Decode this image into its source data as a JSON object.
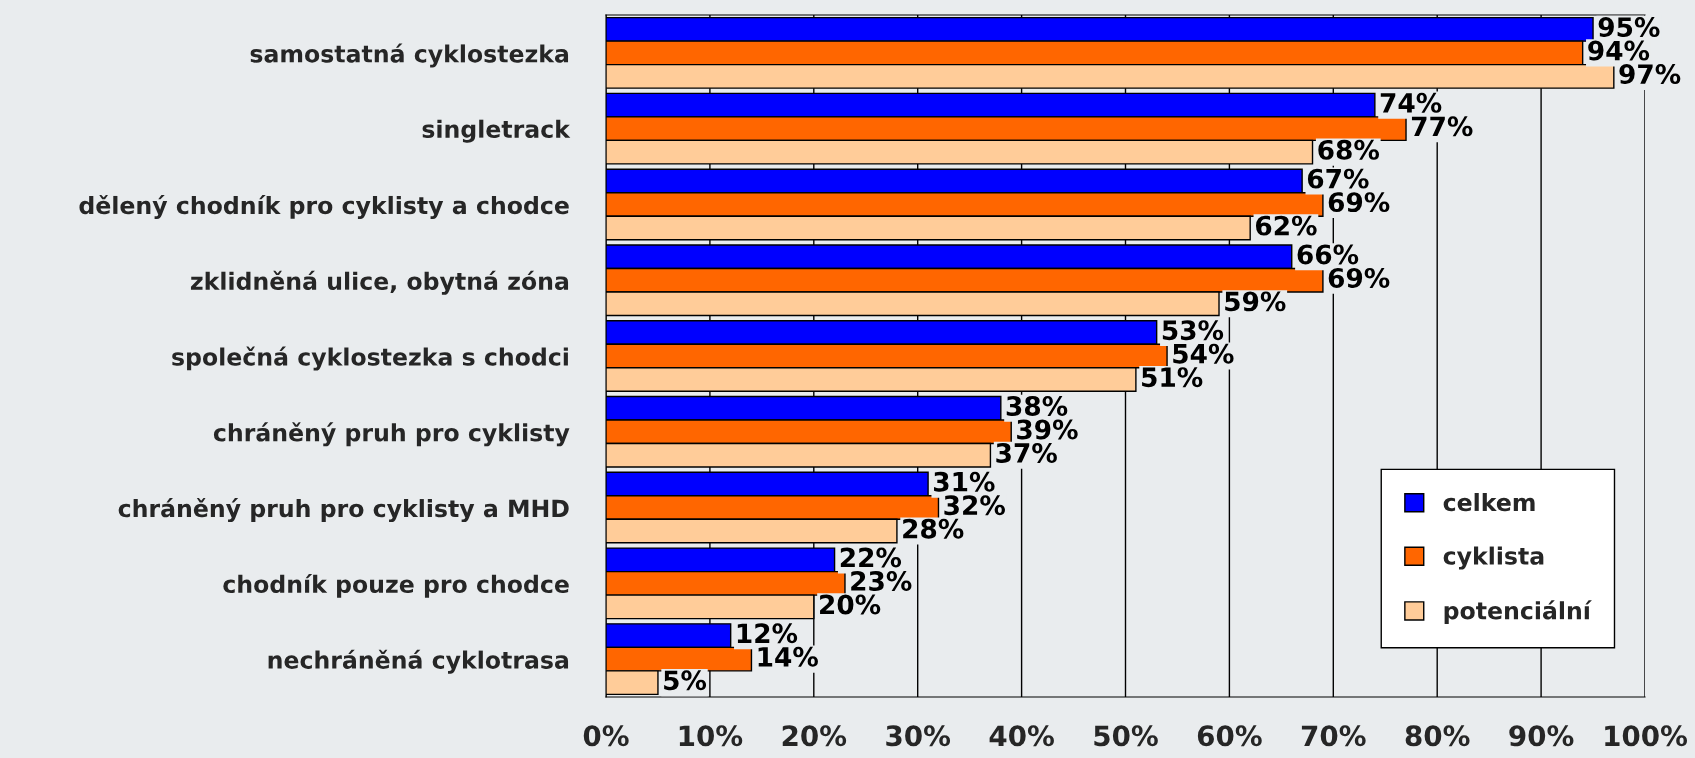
{
  "chart_data": {
    "type": "bar",
    "orientation": "horizontal",
    "categories": [
      "samostatná cyklostezka",
      "singletrack",
      "dělený chodník pro cyklisty a chodce",
      "zklidněná ulice, obytná zóna",
      "společná cyklostezka s chodci",
      "chráněný pruh pro cyklisty",
      "chráněný pruh pro cyklisty a MHD",
      "chodník pouze pro chodce",
      "nechráněná cyklotrasa"
    ],
    "series": [
      {
        "name": "celkem",
        "color": "#0000ff",
        "values": [
          95,
          74,
          67,
          66,
          53,
          38,
          31,
          22,
          12
        ],
        "value_labels": [
          "95%",
          "74%",
          "67%",
          "66%",
          "53%",
          "38%",
          "31%",
          "22%",
          "12%"
        ]
      },
      {
        "name": "cyklista",
        "color": "#ff6600",
        "values": [
          94,
          77,
          69,
          69,
          54,
          39,
          32,
          23,
          14
        ],
        "value_labels": [
          "94%",
          "77%",
          "69%",
          "69%",
          "54%",
          "39%",
          "32%",
          "23%",
          "14%"
        ]
      },
      {
        "name": "potenciální",
        "color": "#ffcc99",
        "values": [
          97,
          68,
          62,
          59,
          51,
          37,
          28,
          20,
          5
        ],
        "value_labels": [
          "97%",
          "68%",
          "62%",
          "59%",
          "51%",
          "37%",
          "28%",
          "20%",
          "5%"
        ]
      }
    ],
    "xlim": [
      0,
      100
    ],
    "xticks": [
      {
        "value": 0,
        "label": "0%"
      },
      {
        "value": 10,
        "label": "10%"
      },
      {
        "value": 20,
        "label": "20%"
      },
      {
        "value": 30,
        "label": "30%"
      },
      {
        "value": 40,
        "label": "40%"
      },
      {
        "value": 50,
        "label": "50%"
      },
      {
        "value": 60,
        "label": "60%"
      },
      {
        "value": 70,
        "label": "70%"
      },
      {
        "value": 80,
        "label": "80%"
      },
      {
        "value": 90,
        "label": "90%"
      },
      {
        "value": 100,
        "label": "100%"
      }
    ],
    "grid": "x",
    "legend": "bottom right"
  }
}
